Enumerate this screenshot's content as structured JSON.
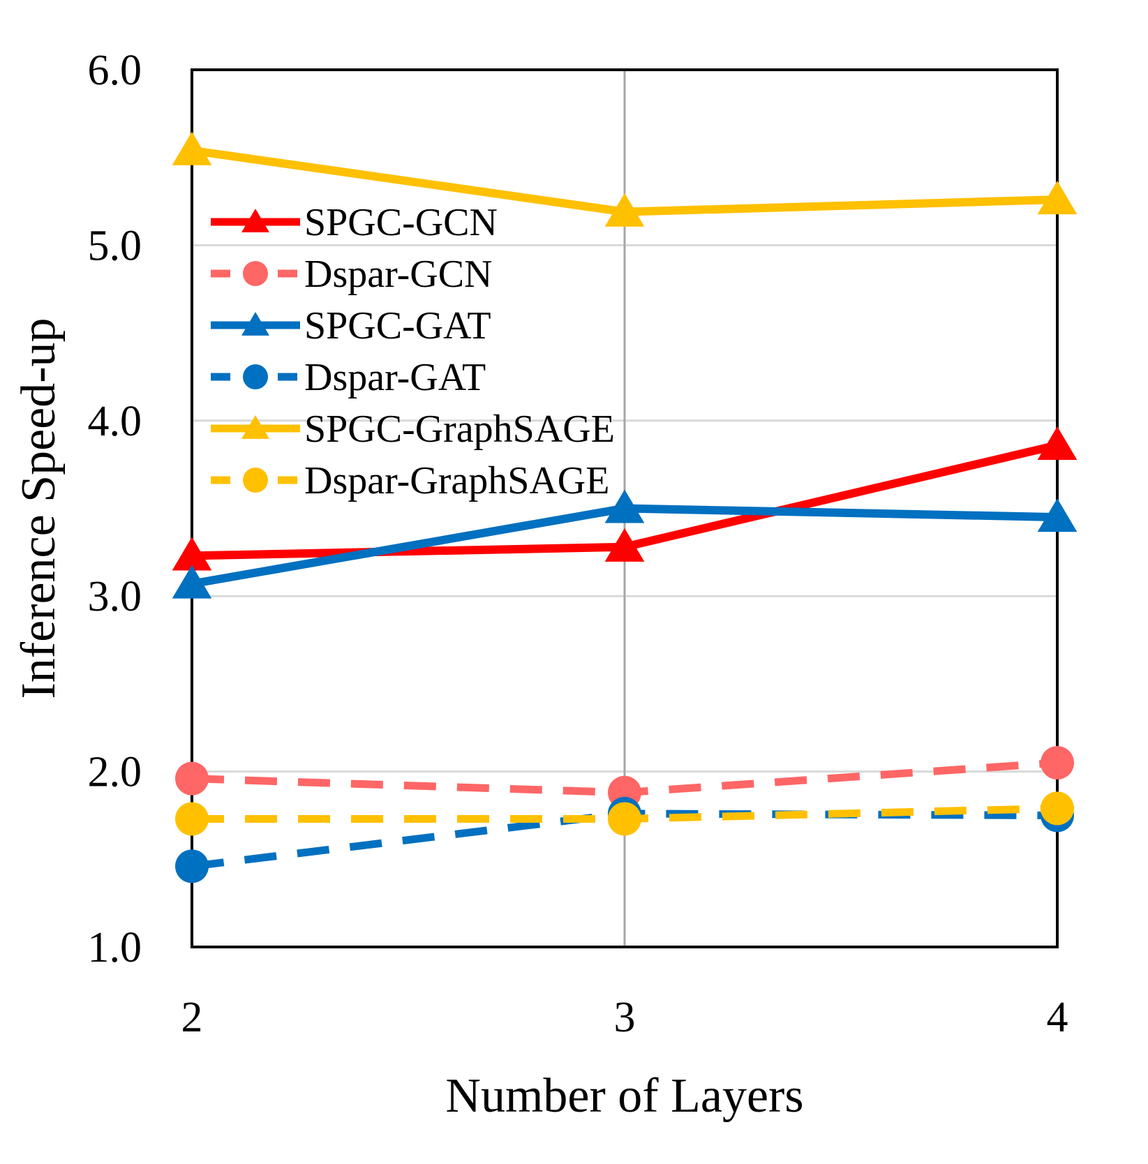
{
  "chart_data": {
    "type": "line",
    "xlabel": "Number of Layers",
    "ylabel": "Inference Speed-up",
    "x": [
      2,
      3,
      4
    ],
    "ylim": [
      1.0,
      6.0
    ],
    "yticks": [
      "1.0",
      "2.0",
      "3.0",
      "4.0",
      "5.0",
      "6.0"
    ],
    "xticks": [
      "2",
      "3",
      "4"
    ],
    "grid": "on",
    "legend_position": "upper-left",
    "series": [
      {
        "name": "SPGC-GCN",
        "values": [
          3.23,
          3.28,
          3.86
        ],
        "color": "#ff0000",
        "marker": "triangle",
        "dashed": false
      },
      {
        "name": "Dspar-GCN",
        "values": [
          1.96,
          1.88,
          2.05
        ],
        "color": "#ff6666",
        "marker": "circle",
        "dashed": true
      },
      {
        "name": "SPGC-GAT",
        "values": [
          3.07,
          3.5,
          3.45
        ],
        "color": "#0070c0",
        "marker": "triangle",
        "dashed": false
      },
      {
        "name": "Dspar-GAT",
        "values": [
          1.46,
          1.76,
          1.75
        ],
        "color": "#0070c0",
        "marker": "circle",
        "dashed": true
      },
      {
        "name": "SPGC-GraphSAGE",
        "values": [
          5.54,
          5.19,
          5.26
        ],
        "color": "#ffc000",
        "marker": "triangle",
        "dashed": false
      },
      {
        "name": "Dspar-GraphSAGE",
        "values": [
          1.73,
          1.73,
          1.79
        ],
        "color": "#ffc000",
        "marker": "circle",
        "dashed": true
      }
    ]
  }
}
